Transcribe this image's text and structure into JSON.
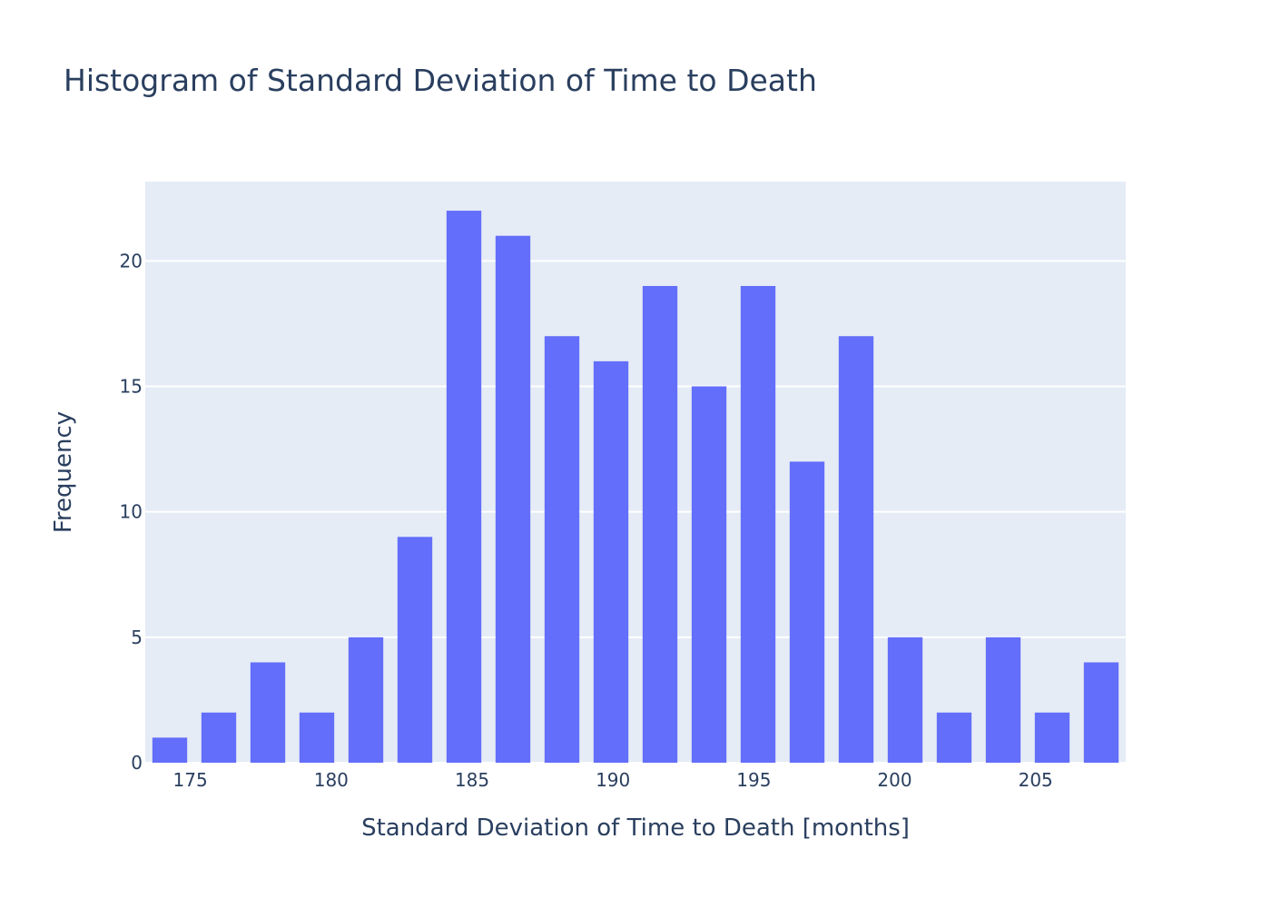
{
  "chart_data": {
    "type": "bar",
    "title": "Histogram of Standard Deviation of Time to Death",
    "xlabel": "Standard Deviation of Time to Death [months]",
    "ylabel": "Frequency",
    "bin_start": 173.4,
    "bin_size": 1.74,
    "values": [
      1,
      2,
      4,
      2,
      5,
      9,
      22,
      21,
      17,
      16,
      19,
      15,
      19,
      12,
      17,
      5,
      2,
      5,
      2,
      4
    ],
    "xlim": [
      173.4,
      208.2
    ],
    "ylim": [
      0,
      23.16
    ],
    "xticks": [
      175,
      180,
      185,
      190,
      195,
      200,
      205
    ],
    "yticks": [
      0,
      5,
      10,
      15,
      20
    ],
    "grid": true,
    "colors": {
      "bar": "#636efa",
      "plot_bg": "#e5ecf6",
      "grid": "#ffffff",
      "text": "#2a3f5f"
    }
  }
}
